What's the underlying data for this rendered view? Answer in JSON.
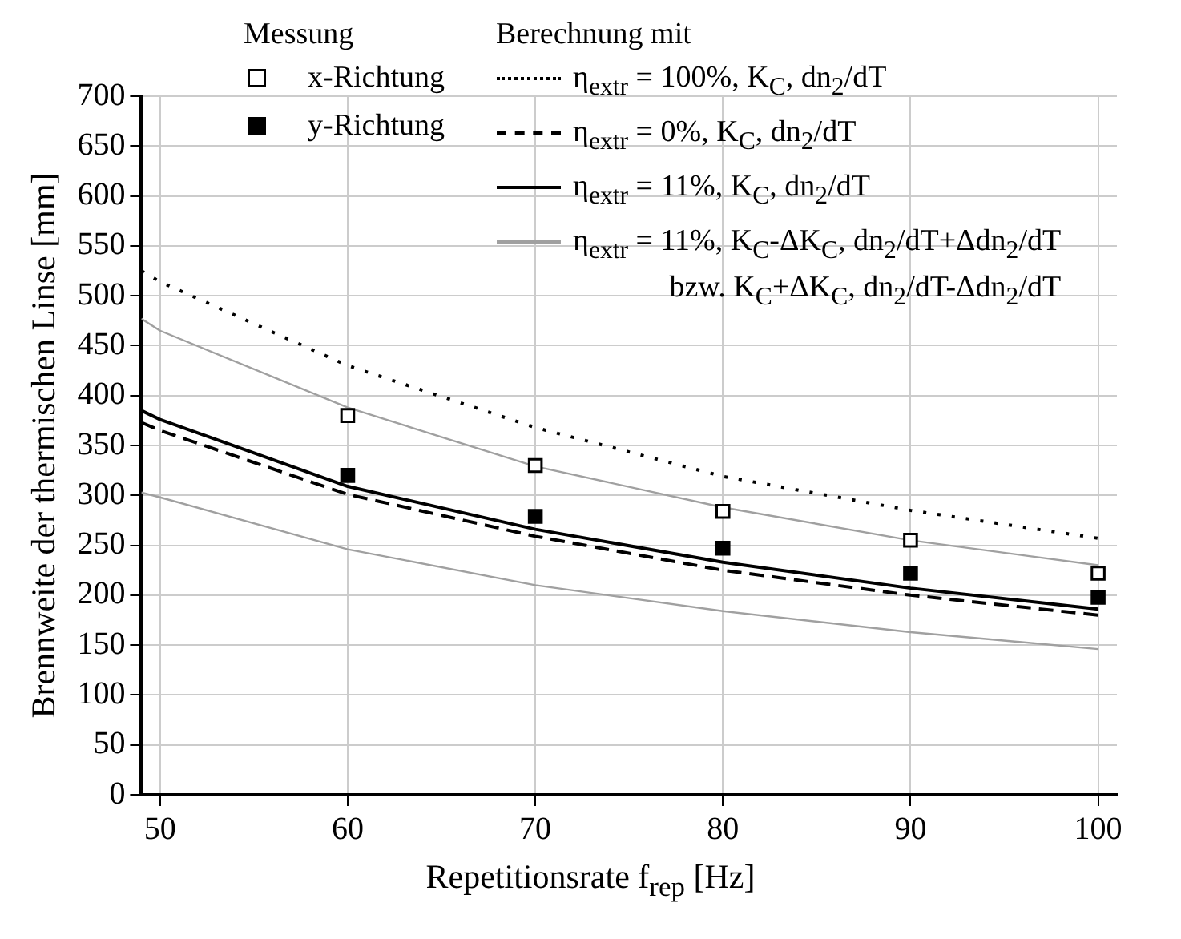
{
  "chart_data": {
    "type": "line",
    "xlabel": "Repetitionsrate f$_{rep}$ [Hz]",
    "ylabel": "Brennweite der thermischen Linse [mm]",
    "legend_title": "Messung",
    "annotations": [
      "Berechnung mit"
    ],
    "xlim": [
      49,
      101
    ],
    "xticks": [
      50,
      60,
      70,
      80,
      90,
      100
    ],
    "ylim": [
      0,
      700
    ],
    "yticks": [
      0,
      50,
      100,
      150,
      200,
      250,
      300,
      350,
      400,
      450,
      500,
      550,
      600,
      650,
      700
    ],
    "grid": true,
    "legend": "top",
    "series": [
      {
        "type": "scatter",
        "name": "x-Richtung",
        "color": "#ffffff",
        "marker": "square",
        "x": [
          60,
          70,
          80,
          90,
          100
        ],
        "values": [
          380,
          330,
          284,
          255,
          222
        ]
      },
      {
        "type": "scatter",
        "name": "y-Richtung",
        "color": "#000000",
        "marker": "square",
        "x": [
          60,
          70,
          80,
          90,
          100
        ],
        "values": [
          320,
          279,
          247,
          222,
          198
        ]
      },
      {
        "type": "line",
        "name": "η$_{extr}$ = 100%, K$_{C}$, dn$_{2}$/dT",
        "color": "#000000",
        "line_style": "dotted",
        "marker": "none",
        "x": [
          49,
          50,
          60,
          70,
          80,
          90,
          100
        ],
        "values": [
          525,
          514,
          430,
          368,
          319,
          285,
          257
        ]
      },
      {
        "type": "line",
        "name": "η$_{extr}$ = 0%, K$_{C}$, dn$_{2}$/dT",
        "color": "#000000",
        "line_style": "dashed",
        "marker": "none",
        "x": [
          49,
          50,
          60,
          70,
          80,
          90,
          100
        ],
        "values": [
          373,
          365,
          301,
          259,
          225,
          200,
          180
        ]
      },
      {
        "type": "line",
        "name": "η$_{extr}$ = 11%, K$_{C}$, dn$_{2}$/dT",
        "color": "#000000",
        "line_style": "solid",
        "marker": "none",
        "x": [
          49,
          50,
          60,
          70,
          80,
          90,
          100
        ],
        "values": [
          385,
          376,
          309,
          266,
          233,
          207,
          186
        ]
      },
      {
        "type": "line",
        "name": "η$_{extr}$ = 11%, K$_{C}$-ΔK$_{C}$, dn$_{2}$/dT+Δdn$_{2}$/dT\nbzw. K$_{C}$+ΔK$_{C}$, dn$_{2}$/dT-Δdn$_{2}$/dT",
        "color": "#a0a0a0",
        "line_style": "solid",
        "marker": "none",
        "x": [
          49,
          50,
          60,
          70,
          80,
          90,
          100
        ],
        "values": [
          477,
          465,
          388,
          329,
          288,
          255,
          230
        ]
      },
      {
        "type": "line",
        "color": "#a0a0a0",
        "line_style": "solid",
        "marker": "none",
        "x": [
          49,
          50,
          60,
          70,
          80,
          90,
          100
        ],
        "values": [
          303,
          298,
          246,
          210,
          184,
          163,
          146
        ]
      }
    ]
  }
}
